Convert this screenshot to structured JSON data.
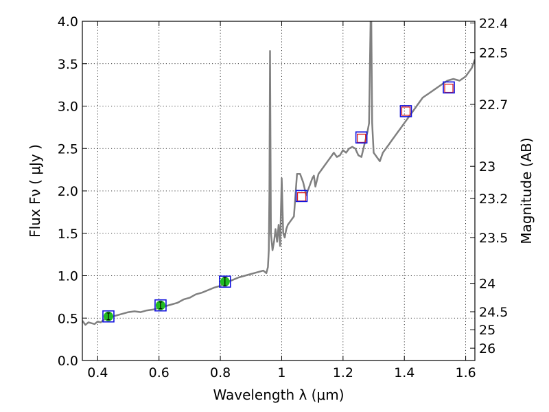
{
  "chart_data": {
    "type": "line",
    "title": "",
    "xlabel": "Wavelength  λ (μm)",
    "ylabel": "Flux  Fν  ( μJy )",
    "ylabel_right": "Magnitude (AB)",
    "xlim": [
      0.35,
      1.63
    ],
    "ylim": [
      0,
      4.0
    ],
    "grid": true,
    "x_ticks": [
      0.4,
      0.6,
      0.8,
      1.0,
      1.2,
      1.4,
      1.6
    ],
    "x_tick_labels": [
      "0.4",
      "0.6",
      "0.8",
      "1",
      "1.2",
      "1.4",
      "1.6"
    ],
    "y_ticks": [
      0,
      0.5,
      1.0,
      1.5,
      2.0,
      2.5,
      3.0,
      3.5,
      4.0
    ],
    "y_tick_labels": [
      "0.0",
      "0.5",
      "1.0",
      "1.5",
      "2.0",
      "2.5",
      "3.0",
      "3.5",
      "4.0"
    ],
    "right_ticks": [
      {
        "label": "22.4",
        "flux": 3.98
      },
      {
        "label": "22.5",
        "flux": 3.63
      },
      {
        "label": "22.7",
        "flux": 3.02
      },
      {
        "label": "23",
        "flux": 2.29
      },
      {
        "label": "23.2",
        "flux": 1.91
      },
      {
        "label": "23.5",
        "flux": 1.45
      },
      {
        "label": "24",
        "flux": 0.91
      },
      {
        "label": "24.5",
        "flux": 0.575
      },
      {
        "label": "25",
        "flux": 0.363
      },
      {
        "label": "26",
        "flux": 0.145
      }
    ],
    "series": [
      {
        "color": "#808080",
        "x": [
          0.35,
          0.36,
          0.37,
          0.38,
          0.39,
          0.4,
          0.41,
          0.42,
          0.43,
          0.44,
          0.45,
          0.46,
          0.48,
          0.5,
          0.52,
          0.54,
          0.56,
          0.58,
          0.6,
          0.62,
          0.64,
          0.66,
          0.68,
          0.7,
          0.72,
          0.74,
          0.76,
          0.78,
          0.8,
          0.82,
          0.84,
          0.86,
          0.88,
          0.9,
          0.92,
          0.94,
          0.95,
          0.955,
          0.958,
          0.96,
          0.962,
          0.965,
          0.97,
          0.975,
          0.98,
          0.985,
          0.99,
          0.995,
          1.0,
          1.005,
          1.01,
          1.015,
          1.02,
          1.03,
          1.04,
          1.05,
          1.06,
          1.07,
          1.08,
          1.09,
          1.1,
          1.105,
          1.11,
          1.12,
          1.13,
          1.14,
          1.15,
          1.16,
          1.17,
          1.18,
          1.19,
          1.2,
          1.21,
          1.22,
          1.23,
          1.24,
          1.25,
          1.26,
          1.27,
          1.28,
          1.285,
          1.29,
          1.292,
          1.295,
          1.3,
          1.31,
          1.32,
          1.33,
          1.34,
          1.35,
          1.36,
          1.37,
          1.38,
          1.39,
          1.4,
          1.42,
          1.44,
          1.46,
          1.48,
          1.5,
          1.52,
          1.54,
          1.56,
          1.58,
          1.6,
          1.62,
          1.63
        ],
        "y": [
          0.47,
          0.42,
          0.45,
          0.44,
          0.43,
          0.46,
          0.45,
          0.48,
          0.5,
          0.51,
          0.52,
          0.53,
          0.55,
          0.57,
          0.58,
          0.57,
          0.59,
          0.6,
          0.62,
          0.64,
          0.66,
          0.68,
          0.72,
          0.74,
          0.78,
          0.8,
          0.83,
          0.86,
          0.88,
          0.92,
          0.95,
          0.98,
          1.0,
          1.02,
          1.04,
          1.06,
          1.03,
          1.1,
          1.3,
          2.0,
          3.65,
          1.5,
          1.3,
          1.4,
          1.55,
          1.4,
          1.6,
          1.35,
          2.15,
          1.5,
          1.45,
          1.55,
          1.6,
          1.65,
          1.7,
          2.2,
          2.2,
          2.1,
          1.95,
          2.05,
          2.15,
          2.18,
          2.05,
          2.2,
          2.25,
          2.3,
          2.35,
          2.4,
          2.45,
          2.4,
          2.42,
          2.48,
          2.45,
          2.5,
          2.52,
          2.5,
          2.42,
          2.4,
          2.55,
          2.7,
          2.8,
          4.05,
          4.05,
          2.8,
          2.45,
          2.4,
          2.35,
          2.45,
          2.5,
          2.55,
          2.6,
          2.65,
          2.7,
          2.75,
          2.8,
          2.9,
          3.0,
          3.1,
          3.15,
          3.2,
          3.25,
          3.3,
          3.32,
          3.3,
          3.35,
          3.45,
          3.55
        ]
      }
    ],
    "markers": {
      "circles": {
        "color": "#22bb22",
        "x": [
          0.435,
          0.605,
          0.815
        ],
        "y": [
          0.52,
          0.65,
          0.93
        ],
        "err": [
          0.04,
          0.04,
          0.05
        ]
      },
      "blue_squares": {
        "color": "#1111dd",
        "x": [
          0.435,
          0.605,
          0.815,
          1.065,
          1.26,
          1.405,
          1.545
        ],
        "y": [
          0.52,
          0.65,
          0.93,
          1.94,
          2.63,
          2.94,
          3.22
        ]
      },
      "red_squares": {
        "color": "#dd2222",
        "x": [
          1.065,
          1.26,
          1.405,
          1.545
        ],
        "y": [
          1.93,
          2.62,
          2.94,
          3.21
        ]
      }
    }
  }
}
